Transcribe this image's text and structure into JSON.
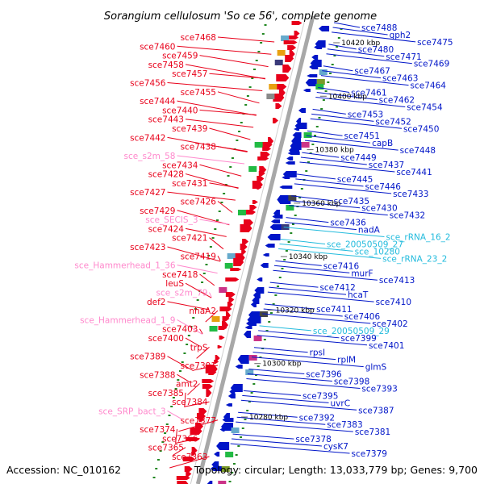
{
  "title": "Sorangium cellulosum 'So ce 56', complete genome",
  "footer": {
    "accession": "Accession: NC_010162",
    "summary": "Topology: circular; Length: 13,033,779 bp; Genes: 9,700"
  },
  "colors": {
    "forward": "#e8001a",
    "reverse": "#0015c8",
    "rna": "#ff88cc",
    "rna_right": "#22bbdd",
    "backbone": "#a8a8a8",
    "tick": "#228822"
  },
  "scale_labels": [
    "10420 kbp",
    "10400 kbp",
    "10380 kbp",
    "10360 kbp",
    "10340 kbp",
    "10320 kbp",
    "10300 kbp",
    "10280 kbp"
  ],
  "left_labels": [
    {
      "text": "sce7468",
      "type": "gene"
    },
    {
      "text": "sce7460",
      "type": "gene"
    },
    {
      "text": "sce7459",
      "type": "gene"
    },
    {
      "text": "sce7458",
      "type": "gene"
    },
    {
      "text": "sce7457",
      "type": "gene"
    },
    {
      "text": "sce7456",
      "type": "gene"
    },
    {
      "text": "sce7455",
      "type": "gene"
    },
    {
      "text": "sce7444",
      "type": "gene"
    },
    {
      "text": "sce7440",
      "type": "gene"
    },
    {
      "text": "sce7443",
      "type": "gene"
    },
    {
      "text": "sce7439",
      "type": "gene"
    },
    {
      "text": "sce7442",
      "type": "gene"
    },
    {
      "text": "sce7438",
      "type": "gene"
    },
    {
      "text": "sce_s2m_58",
      "type": "rna"
    },
    {
      "text": "sce7434",
      "type": "gene"
    },
    {
      "text": "sce7428",
      "type": "gene"
    },
    {
      "text": "sce7431",
      "type": "gene"
    },
    {
      "text": "sce7427",
      "type": "gene"
    },
    {
      "text": "sce7426",
      "type": "gene"
    },
    {
      "text": "sce7429",
      "type": "gene"
    },
    {
      "text": "sce_SECIS_3",
      "type": "rna"
    },
    {
      "text": "sce7424",
      "type": "gene"
    },
    {
      "text": "sce7421",
      "type": "gene"
    },
    {
      "text": "sce7423",
      "type": "gene"
    },
    {
      "text": "sce7419",
      "type": "gene"
    },
    {
      "text": "sce_Hammerhead_1_36",
      "type": "rna"
    },
    {
      "text": "sce7418",
      "type": "gene"
    },
    {
      "text": "leuS",
      "type": "gene"
    },
    {
      "text": "sce_s2m_79",
      "type": "rna"
    },
    {
      "text": "def2",
      "type": "gene"
    },
    {
      "text": "nhaA2",
      "type": "gene"
    },
    {
      "text": "sce_Hammerhead_1_9",
      "type": "rna"
    },
    {
      "text": "sce7403",
      "type": "gene"
    },
    {
      "text": "sce7400",
      "type": "gene"
    },
    {
      "text": "trpS",
      "type": "gene"
    },
    {
      "text": "sce7389",
      "type": "gene"
    },
    {
      "text": "sce7391",
      "type": "gene"
    },
    {
      "text": "sce7388",
      "type": "gene"
    },
    {
      "text": "amt2",
      "type": "gene"
    },
    {
      "text": "sce7385",
      "type": "gene"
    },
    {
      "text": "sce7384",
      "type": "gene"
    },
    {
      "text": "sce_SRP_bact_3",
      "type": "rna"
    },
    {
      "text": "sce7377",
      "type": "gene"
    },
    {
      "text": "sce7374",
      "type": "gene"
    },
    {
      "text": "sce7366",
      "type": "gene"
    },
    {
      "text": "sce7365",
      "type": "gene"
    },
    {
      "text": "sce7363",
      "type": "gene"
    }
  ],
  "right_labels": [
    {
      "text": "sce7488",
      "type": "gene"
    },
    {
      "text": "gph2",
      "type": "gene"
    },
    {
      "text": "sce7475",
      "type": "gene"
    },
    {
      "text": "sce7480",
      "type": "gene"
    },
    {
      "text": "sce7471",
      "type": "gene"
    },
    {
      "text": "sce7469",
      "type": "gene"
    },
    {
      "text": "sce7467",
      "type": "gene"
    },
    {
      "text": "sce7463",
      "type": "gene"
    },
    {
      "text": "sce7464",
      "type": "gene"
    },
    {
      "text": "sce7461",
      "type": "gene"
    },
    {
      "text": "sce7462",
      "type": "gene"
    },
    {
      "text": "sce7454",
      "type": "gene"
    },
    {
      "text": "sce7453",
      "type": "gene"
    },
    {
      "text": "sce7452",
      "type": "gene"
    },
    {
      "text": "sce7450",
      "type": "gene"
    },
    {
      "text": "sce7451",
      "type": "gene"
    },
    {
      "text": "capB",
      "type": "gene"
    },
    {
      "text": "sce7448",
      "type": "gene"
    },
    {
      "text": "sce7449",
      "type": "gene"
    },
    {
      "text": "sce7437",
      "type": "gene"
    },
    {
      "text": "sce7441",
      "type": "gene"
    },
    {
      "text": "sce7445",
      "type": "gene"
    },
    {
      "text": "sce7446",
      "type": "gene"
    },
    {
      "text": "sce7433",
      "type": "gene"
    },
    {
      "text": "sce7435",
      "type": "gene"
    },
    {
      "text": "sce7430",
      "type": "gene"
    },
    {
      "text": "sce7432",
      "type": "gene"
    },
    {
      "text": "sce7436",
      "type": "gene"
    },
    {
      "text": "nadA",
      "type": "gene"
    },
    {
      "text": "sce_rRNA_16_2",
      "type": "rna"
    },
    {
      "text": "sce_20050509_27",
      "type": "rna"
    },
    {
      "text": "sce_10280",
      "type": "rna"
    },
    {
      "text": "sce_rRNA_23_2",
      "type": "rna"
    },
    {
      "text": "sce7416",
      "type": "gene"
    },
    {
      "text": "murF",
      "type": "gene"
    },
    {
      "text": "sce7413",
      "type": "gene"
    },
    {
      "text": "sce7412",
      "type": "gene"
    },
    {
      "text": "hcaT",
      "type": "gene"
    },
    {
      "text": "sce7410",
      "type": "gene"
    },
    {
      "text": "sce7411",
      "type": "gene"
    },
    {
      "text": "sce7406",
      "type": "gene"
    },
    {
      "text": "sce7402",
      "type": "gene"
    },
    {
      "text": "sce_20050509_29",
      "type": "rna"
    },
    {
      "text": "sce7399",
      "type": "gene"
    },
    {
      "text": "sce7401",
      "type": "gene"
    },
    {
      "text": "rpsI",
      "type": "gene"
    },
    {
      "text": "rplM",
      "type": "gene"
    },
    {
      "text": "glmS",
      "type": "gene"
    },
    {
      "text": "sce7396",
      "type": "gene"
    },
    {
      "text": "sce7398",
      "type": "gene"
    },
    {
      "text": "sce7393",
      "type": "gene"
    },
    {
      "text": "sce7395",
      "type": "gene"
    },
    {
      "text": "uvrC",
      "type": "gene"
    },
    {
      "text": "sce7387",
      "type": "gene"
    },
    {
      "text": "sce7392",
      "type": "gene"
    },
    {
      "text": "sce7383",
      "type": "gene"
    },
    {
      "text": "sce7381",
      "type": "gene"
    },
    {
      "text": "sce7378",
      "type": "gene"
    },
    {
      "text": "cysK7",
      "type": "gene"
    },
    {
      "text": "sce7379",
      "type": "gene"
    }
  ]
}
